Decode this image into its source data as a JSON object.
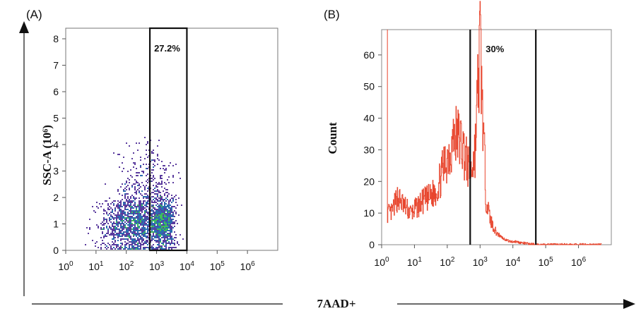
{
  "chart_data": [
    {
      "panel": "(A)",
      "type": "scatter",
      "xlabel": "7AAD+",
      "ylabel": "SSC-A (10⁶)",
      "x_scale": "log",
      "x_ticks": [
        {
          "base": "10",
          "exp": "0"
        },
        {
          "base": "10",
          "exp": "1"
        },
        {
          "base": "10",
          "exp": "2"
        },
        {
          "base": "10",
          "exp": "3"
        },
        {
          "base": "10",
          "exp": "4"
        },
        {
          "base": "10",
          "exp": "5"
        },
        {
          "base": "10",
          "exp": "6"
        }
      ],
      "xlim": [
        1,
        10000000
      ],
      "ylim": [
        0,
        8.4
      ],
      "y_ticks": [
        "0",
        "1",
        "2",
        "3",
        "4",
        "5",
        "6",
        "7",
        "8"
      ],
      "gate": {
        "x_range": [
          600,
          10000
        ],
        "y_range": [
          0,
          8.4
        ],
        "label": "27.2%"
      },
      "density_clusters": [
        {
          "log_x_center": 2.3,
          "y_center": 1.0,
          "log_x_spread": 0.55,
          "y_spread": 0.55,
          "points": 1600
        },
        {
          "log_x_center": 3.2,
          "y_center": 1.1,
          "log_x_spread": 0.18,
          "y_spread": 0.5,
          "points": 700
        },
        {
          "log_x_center": 2.7,
          "y_center": 2.6,
          "log_x_spread": 0.5,
          "y_spread": 0.8,
          "points": 300
        }
      ],
      "colors": {
        "point_low": "#5b3c9e",
        "point_mid": "#2b6cb0",
        "point_high": "#3fbf5a"
      }
    },
    {
      "panel": "(B)",
      "type": "line",
      "xlabel": "7AAD+",
      "ylabel": "Count",
      "x_scale": "log",
      "x_ticks": [
        {
          "base": "10",
          "exp": "0"
        },
        {
          "base": "10",
          "exp": "1"
        },
        {
          "base": "10",
          "exp": "2"
        },
        {
          "base": "10",
          "exp": "3"
        },
        {
          "base": "10",
          "exp": "4"
        },
        {
          "base": "10",
          "exp": "5"
        },
        {
          "base": "10",
          "exp": "6"
        }
      ],
      "xlim": [
        1,
        10000000
      ],
      "ylim": [
        0,
        68
      ],
      "y_ticks": [
        "0",
        "10",
        "20",
        "30",
        "40",
        "50",
        "60"
      ],
      "gate": {
        "x_range": [
          500,
          50000
        ],
        "label": "30%"
      },
      "histogram": {
        "x": [
          1.5,
          2,
          3,
          5,
          8,
          12,
          20,
          30,
          50,
          80,
          120,
          180,
          250,
          350,
          500,
          700,
          900,
          1000,
          1200,
          1500,
          2000,
          3000,
          5000,
          8000,
          12000,
          20000,
          50000,
          100000,
          1000000,
          5000000
        ],
        "y": [
          10,
          10,
          15,
          12,
          10,
          12,
          14,
          15,
          18,
          25,
          30,
          35,
          33,
          28,
          22,
          30,
          55,
          64,
          40,
          15,
          8,
          4,
          2,
          1,
          1,
          0.5,
          0,
          0,
          0,
          0
        ]
      },
      "colors": {
        "line": "#e8462e"
      }
    }
  ],
  "shared_axis_title": "7AAD+"
}
